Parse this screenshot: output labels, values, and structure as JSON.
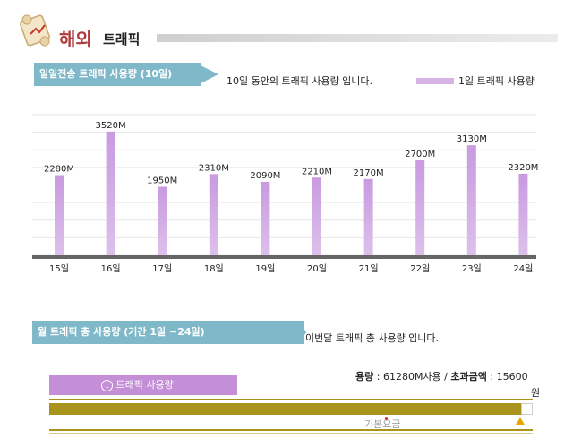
{
  "header": {
    "title_main": "해외",
    "title_sub": "트래픽"
  },
  "daily": {
    "tab_label": "일일전송 트래픽 사용량 (10일)",
    "description": "10일 동안의 트래픽 사용량 입니다.",
    "legend_label": "1일 트래픽 사용량"
  },
  "chart_data": {
    "type": "bar",
    "categories": [
      "15일",
      "16일",
      "17일",
      "18일",
      "19일",
      "20일",
      "21일",
      "22일",
      "23일",
      "24일"
    ],
    "values": [
      2280,
      3520,
      1950,
      2310,
      2090,
      2210,
      2170,
      2700,
      3130,
      2320
    ],
    "data_labels": [
      "2280M",
      "3520M",
      "1950M",
      "2310M",
      "2090M",
      "2210M",
      "2170M",
      "2700M",
      "3130M",
      "2320M"
    ],
    "unit": "M",
    "ylim": [
      0,
      4000
    ],
    "grid": true,
    "bar_color": "#dcc0ea",
    "bar_color_top": "#c99ae0"
  },
  "monthly": {
    "tab_label": "월 트래픽 총 사용량 (기간 1일 ~24일)",
    "description": "이번달 트래픽 총 사용량 입니다.",
    "usage_label": "용량",
    "usage_value": ": 61280M사용 /",
    "excess_label": "초과금액",
    "excess_value": ": 15600",
    "currency": "원",
    "traffic_box_number": "1",
    "traffic_box_label": "트래픽 사용량",
    "base_fee_label": "기본요금"
  },
  "colors": {
    "tab_bg": "#7fb8c8",
    "title_red": "#b03a3a",
    "traffic_box": "#c48fd6",
    "gold": "#a8941c"
  }
}
